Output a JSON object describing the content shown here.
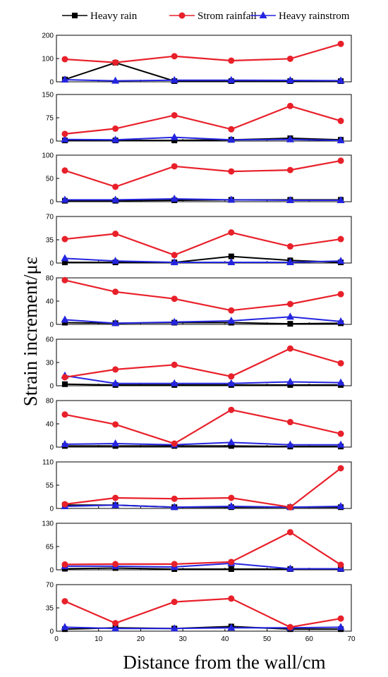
{
  "chart_data": {
    "type": "line",
    "xlabel": "Distance from the wall/cm",
    "ylabel": "Strain increment/με",
    "xlim": [
      0,
      70
    ],
    "xticks": [
      0,
      10,
      20,
      30,
      40,
      50,
      60,
      70
    ],
    "x": [
      2,
      14,
      28,
      41.5,
      55.5,
      67.5
    ],
    "grid": false,
    "legend_placement": "top",
    "series_styles": [
      {
        "name": "Heavy rain",
        "color": "#000000",
        "marker": "square"
      },
      {
        "name": "Strom rainfall",
        "color": "#e8202a",
        "marker": "circle"
      },
      {
        "name": "Heavy rainstrom",
        "color": "#2424e0",
        "marker": "triangle"
      }
    ],
    "panels": [
      {
        "ylim": [
          0,
          200
        ],
        "yticks": [
          0,
          100,
          200
        ],
        "values": [
          [
            10,
            82,
            3,
            3,
            3,
            3
          ],
          [
            97,
            83,
            110,
            91,
            99,
            163
          ],
          [
            9,
            4,
            7,
            7,
            6,
            5
          ]
        ]
      },
      {
        "ylim": [
          0,
          150
        ],
        "yticks": [
          0,
          75,
          150
        ],
        "values": [
          [
            2,
            2,
            2,
            4,
            9,
            4
          ],
          [
            23,
            40,
            83,
            38,
            113,
            65
          ],
          [
            5,
            4,
            12,
            4,
            5,
            2
          ]
        ]
      },
      {
        "ylim": [
          0,
          100
        ],
        "yticks": [
          0,
          50,
          100
        ],
        "values": [
          [
            2,
            2,
            3,
            4,
            4,
            4
          ],
          [
            67,
            32,
            76,
            65,
            68,
            88
          ],
          [
            4,
            4,
            6,
            4,
            3,
            3
          ]
        ]
      },
      {
        "ylim": [
          0,
          70
        ],
        "yticks": [
          0,
          35,
          70
        ],
        "values": [
          [
            1,
            1,
            1,
            10,
            4,
            1
          ],
          [
            36,
            44,
            12,
            46,
            25,
            36
          ],
          [
            7,
            3,
            1,
            1,
            1,
            3
          ]
        ]
      },
      {
        "ylim": [
          0,
          80
        ],
        "yticks": [
          0,
          40,
          80
        ],
        "values": [
          [
            3,
            2,
            3,
            3,
            1,
            2
          ],
          [
            76,
            56,
            44,
            24,
            35,
            52
          ],
          [
            8,
            2,
            4,
            6,
            13,
            5
          ]
        ]
      },
      {
        "ylim": [
          0,
          60
        ],
        "yticks": [
          0,
          30,
          60
        ],
        "values": [
          [
            2,
            1,
            1,
            1,
            1,
            1
          ],
          [
            11,
            21,
            27,
            12,
            48,
            29
          ],
          [
            13,
            3,
            3,
            3,
            5,
            4
          ]
        ]
      },
      {
        "ylim": [
          0,
          80
        ],
        "yticks": [
          0,
          40,
          80
        ],
        "values": [
          [
            2,
            2,
            2,
            2,
            1,
            1
          ],
          [
            56,
            39,
            6,
            64,
            43,
            23
          ],
          [
            5,
            6,
            4,
            8,
            4,
            4
          ]
        ]
      },
      {
        "ylim": [
          0,
          110
        ],
        "yticks": [
          0,
          55,
          110
        ],
        "values": [
          [
            8,
            8,
            3,
            3,
            3,
            3
          ],
          [
            10,
            25,
            23,
            25,
            3,
            95
          ],
          [
            5,
            8,
            3,
            5,
            3,
            5
          ]
        ]
      },
      {
        "ylim": [
          0,
          130
        ],
        "yticks": [
          0,
          65,
          130
        ],
        "values": [
          [
            3,
            5,
            2,
            2,
            2,
            2
          ],
          [
            15,
            16,
            16,
            22,
            105,
            14
          ],
          [
            10,
            10,
            8,
            18,
            3,
            3
          ]
        ]
      },
      {
        "ylim": [
          0,
          70
        ],
        "yticks": [
          0,
          35,
          70
        ],
        "values": [
          [
            3,
            5,
            4,
            7,
            3,
            3
          ],
          [
            45,
            12,
            44,
            49,
            6,
            19
          ],
          [
            6,
            4,
            4,
            5,
            5,
            6
          ]
        ]
      }
    ]
  }
}
